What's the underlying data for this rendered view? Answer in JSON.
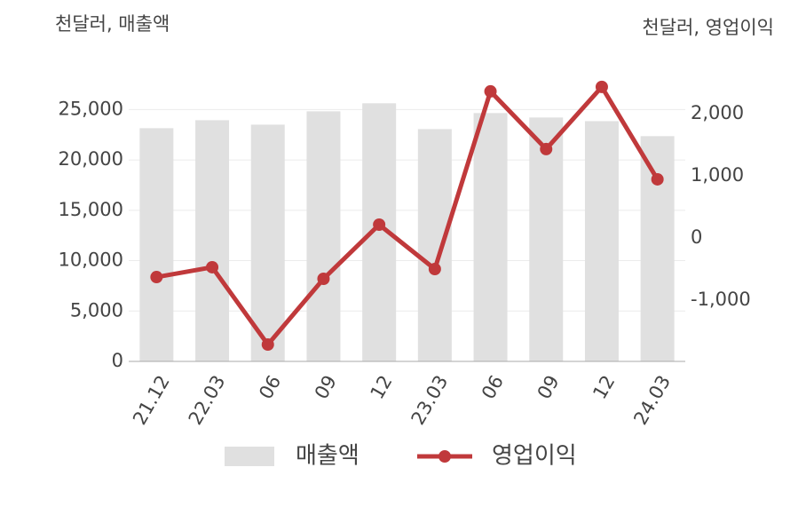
{
  "chart_data": {
    "type": "bar-line",
    "left_unit": "천달러, 매출액",
    "right_unit": "천달러, 영업이익",
    "categories": [
      "21.12",
      "22.03",
      "06",
      "09",
      "12",
      "23.03",
      "06",
      "09",
      "12",
      "24.03"
    ],
    "series": [
      {
        "name": "매출액",
        "type": "bar",
        "color": "#e0e0e0",
        "values": [
          23150,
          23940,
          23500,
          24820,
          25620,
          23060,
          24650,
          24210,
          23850,
          22360
        ]
      },
      {
        "name": "영업이익",
        "type": "line",
        "axis": "y2",
        "color": "#c0393b",
        "values": [
          -629,
          -471,
          -1714,
          -657,
          214,
          -500,
          2357,
          1429,
          2429,
          943
        ]
      }
    ],
    "ylim": [
      0,
      27500
    ],
    "yticks": [
      0,
      {
        "value": 5000,
        "label": "5,000"
      },
      {
        "value": 10000,
        "label": "10,000"
      },
      {
        "value": 15000,
        "label": "15,000"
      },
      {
        "value": 20000,
        "label": "20,000"
      },
      {
        "value": 25000,
        "label": "25,000"
      }
    ],
    "y2lim": [
      -1985,
      2470
    ],
    "y2ticks": [
      {
        "value": -1000,
        "label": "-1,000"
      },
      0,
      {
        "value": 1000,
        "label": "1,000"
      },
      {
        "value": 2000,
        "label": "2,000"
      }
    ],
    "grid": true
  }
}
